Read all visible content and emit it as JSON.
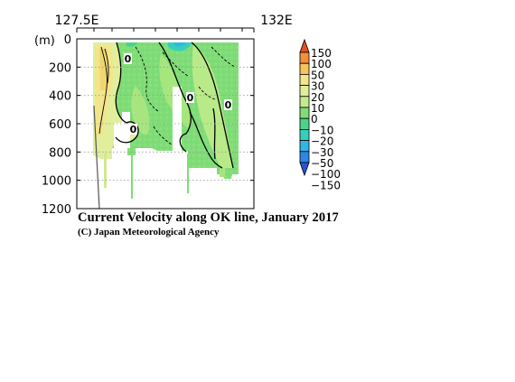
{
  "chart_data": {
    "type": "heatmap",
    "title": "Current Velocity along OK line, January 2017",
    "credit": "(C) Japan Meteorological Agency",
    "x_ticks": [
      "127.5E",
      "132E"
    ],
    "y_unit": "(m)",
    "y_ticks": [
      "0",
      "200",
      "400",
      "600",
      "800",
      "1000",
      "1200"
    ],
    "y_range": [
      0,
      1200
    ],
    "y_inverted": true,
    "grid": "dotted horizontal",
    "contour_labels": [
      "0",
      "0",
      "0"
    ],
    "colorbar": {
      "labels": [
        "150",
        "100",
        "50",
        "30",
        "20",
        "10",
        "0",
        "−10",
        "−20",
        "−30",
        "−50",
        "−100",
        "−150"
      ],
      "levels": [
        150,
        100,
        50,
        30,
        20,
        10,
        0,
        -10,
        -20,
        -30,
        -50,
        -100,
        -150
      ],
      "colors": [
        "#e4511e",
        "#f28f3b",
        "#f7c35c",
        "#f3e58a",
        "#e1ee9c",
        "#c4ea8c",
        "#7fdc78",
        "#4cd28a",
        "#35d0bd",
        "#31b7e2",
        "#2c87e6",
        "#2a55d6"
      ]
    }
  }
}
